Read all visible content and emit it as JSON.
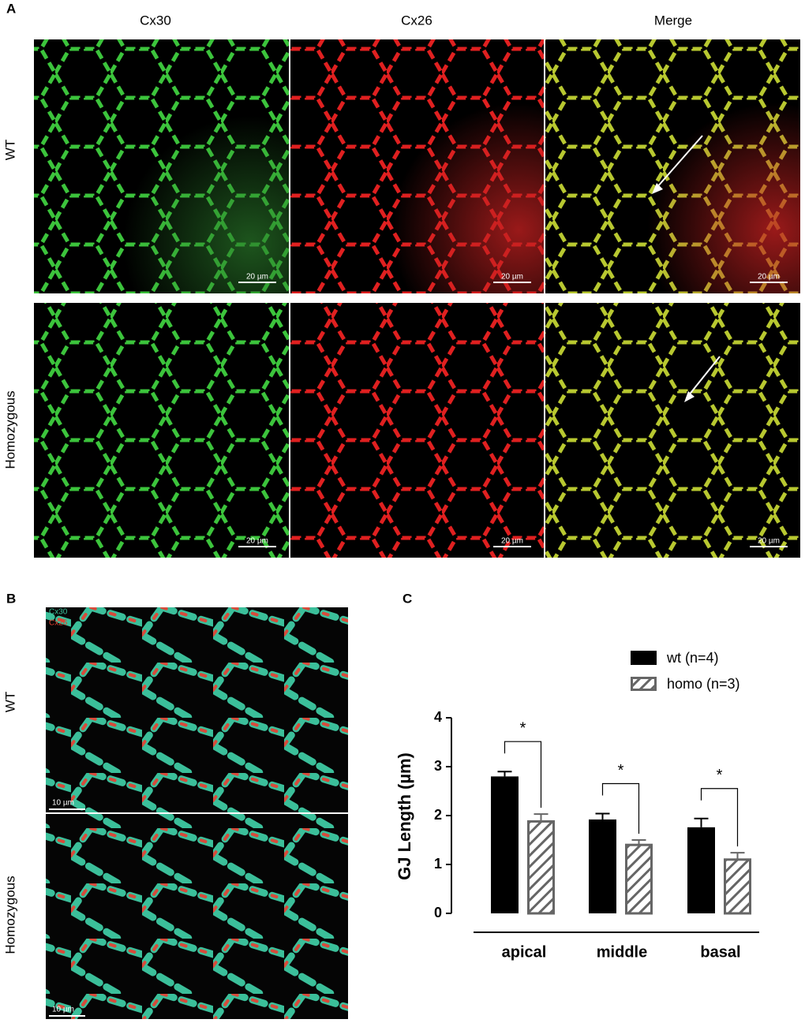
{
  "panel_labels": [
    "A",
    "B",
    "C"
  ],
  "panel_a": {
    "columns": [
      "Cx30",
      "Cx26",
      "Merge"
    ],
    "rows": [
      "WT",
      "Homozygous"
    ],
    "scale_bars": [
      "20 µm",
      "20 µm",
      "20 µm",
      "20 µm",
      "20 µm",
      "20 µm"
    ]
  },
  "panel_b": {
    "channels": [
      "Cx30",
      "Cx26"
    ],
    "rows": [
      "WT",
      "Homozygous"
    ],
    "scale_bars": [
      "10 µm",
      "10 µm"
    ]
  },
  "chart_data": {
    "type": "bar",
    "y_label": "GJ Length (µm)",
    "categories": [
      "apical",
      "middle",
      "basal"
    ],
    "series": [
      {
        "name": "wt (n=4)",
        "color": "#000000",
        "hatch": false,
        "values": [
          2.8,
          1.92,
          1.76
        ],
        "errors": [
          0.1,
          0.12,
          0.18
        ]
      },
      {
        "name": "homo (n=3)",
        "color": "#666666",
        "hatch": true,
        "values": [
          1.88,
          1.4,
          1.1
        ],
        "errors": [
          0.15,
          0.1,
          0.14
        ]
      }
    ],
    "ylim": [
      0,
      4
    ],
    "yticks": [
      0,
      1,
      2,
      3,
      4
    ],
    "significance": [
      "*",
      "*",
      "*"
    ]
  }
}
